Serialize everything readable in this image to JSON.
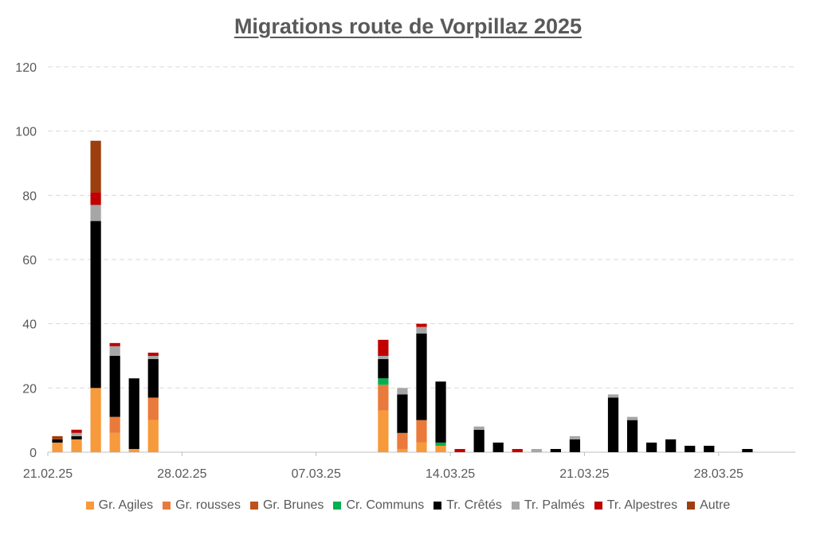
{
  "chart_data": {
    "type": "bar",
    "stacked": true,
    "title": "Migrations route de Vorpillaz 2025",
    "xlabel": "",
    "ylabel": "",
    "ylim": [
      0,
      120
    ],
    "yticks": [
      0,
      20,
      40,
      60,
      80,
      100,
      120
    ],
    "grid": "horizontal-dashed",
    "legend_position": "bottom",
    "x_tick_labels": [
      "21.02.25",
      "28.02.25",
      "07.03.25",
      "14.03.25",
      "21.03.25",
      "28.03.25"
    ],
    "categories": [
      "21.02.25",
      "22.02.25",
      "23.02.25",
      "24.02.25",
      "25.02.25",
      "26.02.25",
      "27.02.25",
      "28.02.25",
      "01.03.25",
      "02.03.25",
      "03.03.25",
      "04.03.25",
      "05.03.25",
      "06.03.25",
      "07.03.25",
      "08.03.25",
      "09.03.25",
      "10.03.25",
      "11.03.25",
      "12.03.25",
      "13.03.25",
      "14.03.25",
      "15.03.25",
      "16.03.25",
      "17.03.25",
      "18.03.25",
      "19.03.25",
      "20.03.25",
      "21.03.25",
      "22.03.25",
      "23.03.25",
      "24.03.25",
      "25.03.25",
      "26.03.25",
      "27.03.25",
      "28.03.25",
      "29.03.25",
      "30.03.25",
      "31.03.25"
    ],
    "series": [
      {
        "name": "Gr. Agiles",
        "color": "#F79A3B",
        "values": [
          3,
          4,
          20,
          6,
          1,
          10,
          0,
          0,
          0,
          0,
          0,
          0,
          0,
          0,
          0,
          0,
          0,
          13,
          1,
          3,
          2,
          0,
          0,
          0,
          0,
          0,
          0,
          0,
          0,
          0,
          0,
          0,
          0,
          0,
          0,
          0,
          0,
          0,
          0
        ]
      },
      {
        "name": "Gr. rousses",
        "color": "#E97A3B",
        "values": [
          0,
          0,
          0,
          5,
          0,
          7,
          0,
          0,
          0,
          0,
          0,
          0,
          0,
          0,
          0,
          0,
          0,
          8,
          5,
          7,
          0,
          0,
          0,
          0,
          0,
          0,
          0,
          0,
          0,
          0,
          0,
          0,
          0,
          0,
          0,
          0,
          0,
          0,
          0
        ]
      },
      {
        "name": "Gr. Brunes",
        "color": "#C0501C",
        "values": [
          0,
          0,
          0,
          0,
          0,
          0,
          0,
          0,
          0,
          0,
          0,
          0,
          0,
          0,
          0,
          0,
          0,
          0,
          0,
          0,
          0,
          0,
          0,
          0,
          0,
          0,
          0,
          0,
          0,
          0,
          0,
          0,
          0,
          0,
          0,
          0,
          0,
          0,
          0
        ]
      },
      {
        "name": "Cr. Communs",
        "color": "#00B050",
        "values": [
          0,
          0,
          0,
          0,
          0,
          0,
          0,
          0,
          0,
          0,
          0,
          0,
          0,
          0,
          0,
          0,
          0,
          2,
          0,
          0,
          1,
          0,
          0,
          0,
          0,
          0,
          0,
          0,
          0,
          0,
          0,
          0,
          0,
          0,
          0,
          0,
          0,
          0,
          0
        ]
      },
      {
        "name": "Tr. Crêtés",
        "color": "#000000",
        "values": [
          1,
          1,
          52,
          19,
          22,
          12,
          0,
          0,
          0,
          0,
          0,
          0,
          0,
          0,
          0,
          0,
          0,
          6,
          12,
          27,
          19,
          0,
          7,
          3,
          0,
          0,
          1,
          4,
          0,
          17,
          10,
          3,
          4,
          2,
          2,
          0,
          1,
          0,
          0
        ]
      },
      {
        "name": "Tr. Palmés",
        "color": "#A6A6A6",
        "values": [
          0,
          1,
          5,
          3,
          0,
          1,
          0,
          0,
          0,
          0,
          0,
          0,
          0,
          0,
          0,
          0,
          0,
          1,
          2,
          2,
          0,
          0,
          1,
          0,
          0,
          1,
          0,
          1,
          0,
          1,
          1,
          0,
          0,
          0,
          0,
          0,
          0,
          0,
          0
        ]
      },
      {
        "name": "Tr. Alpestres",
        "color": "#C00000",
        "values": [
          0,
          1,
          4,
          1,
          0,
          1,
          0,
          0,
          0,
          0,
          0,
          0,
          0,
          0,
          0,
          0,
          0,
          5,
          0,
          1,
          0,
          1,
          0,
          0,
          1,
          0,
          0,
          0,
          0,
          0,
          0,
          0,
          0,
          0,
          0,
          0,
          0,
          0,
          0
        ]
      },
      {
        "name": "Autre",
        "color": "#9C3E0E",
        "values": [
          1,
          0,
          16,
          0,
          0,
          0,
          0,
          0,
          0,
          0,
          0,
          0,
          0,
          0,
          0,
          0,
          0,
          0,
          0,
          0,
          0,
          0,
          0,
          0,
          0,
          0,
          0,
          0,
          0,
          0,
          0,
          0,
          0,
          0,
          0,
          0,
          0,
          0,
          0
        ]
      }
    ]
  }
}
